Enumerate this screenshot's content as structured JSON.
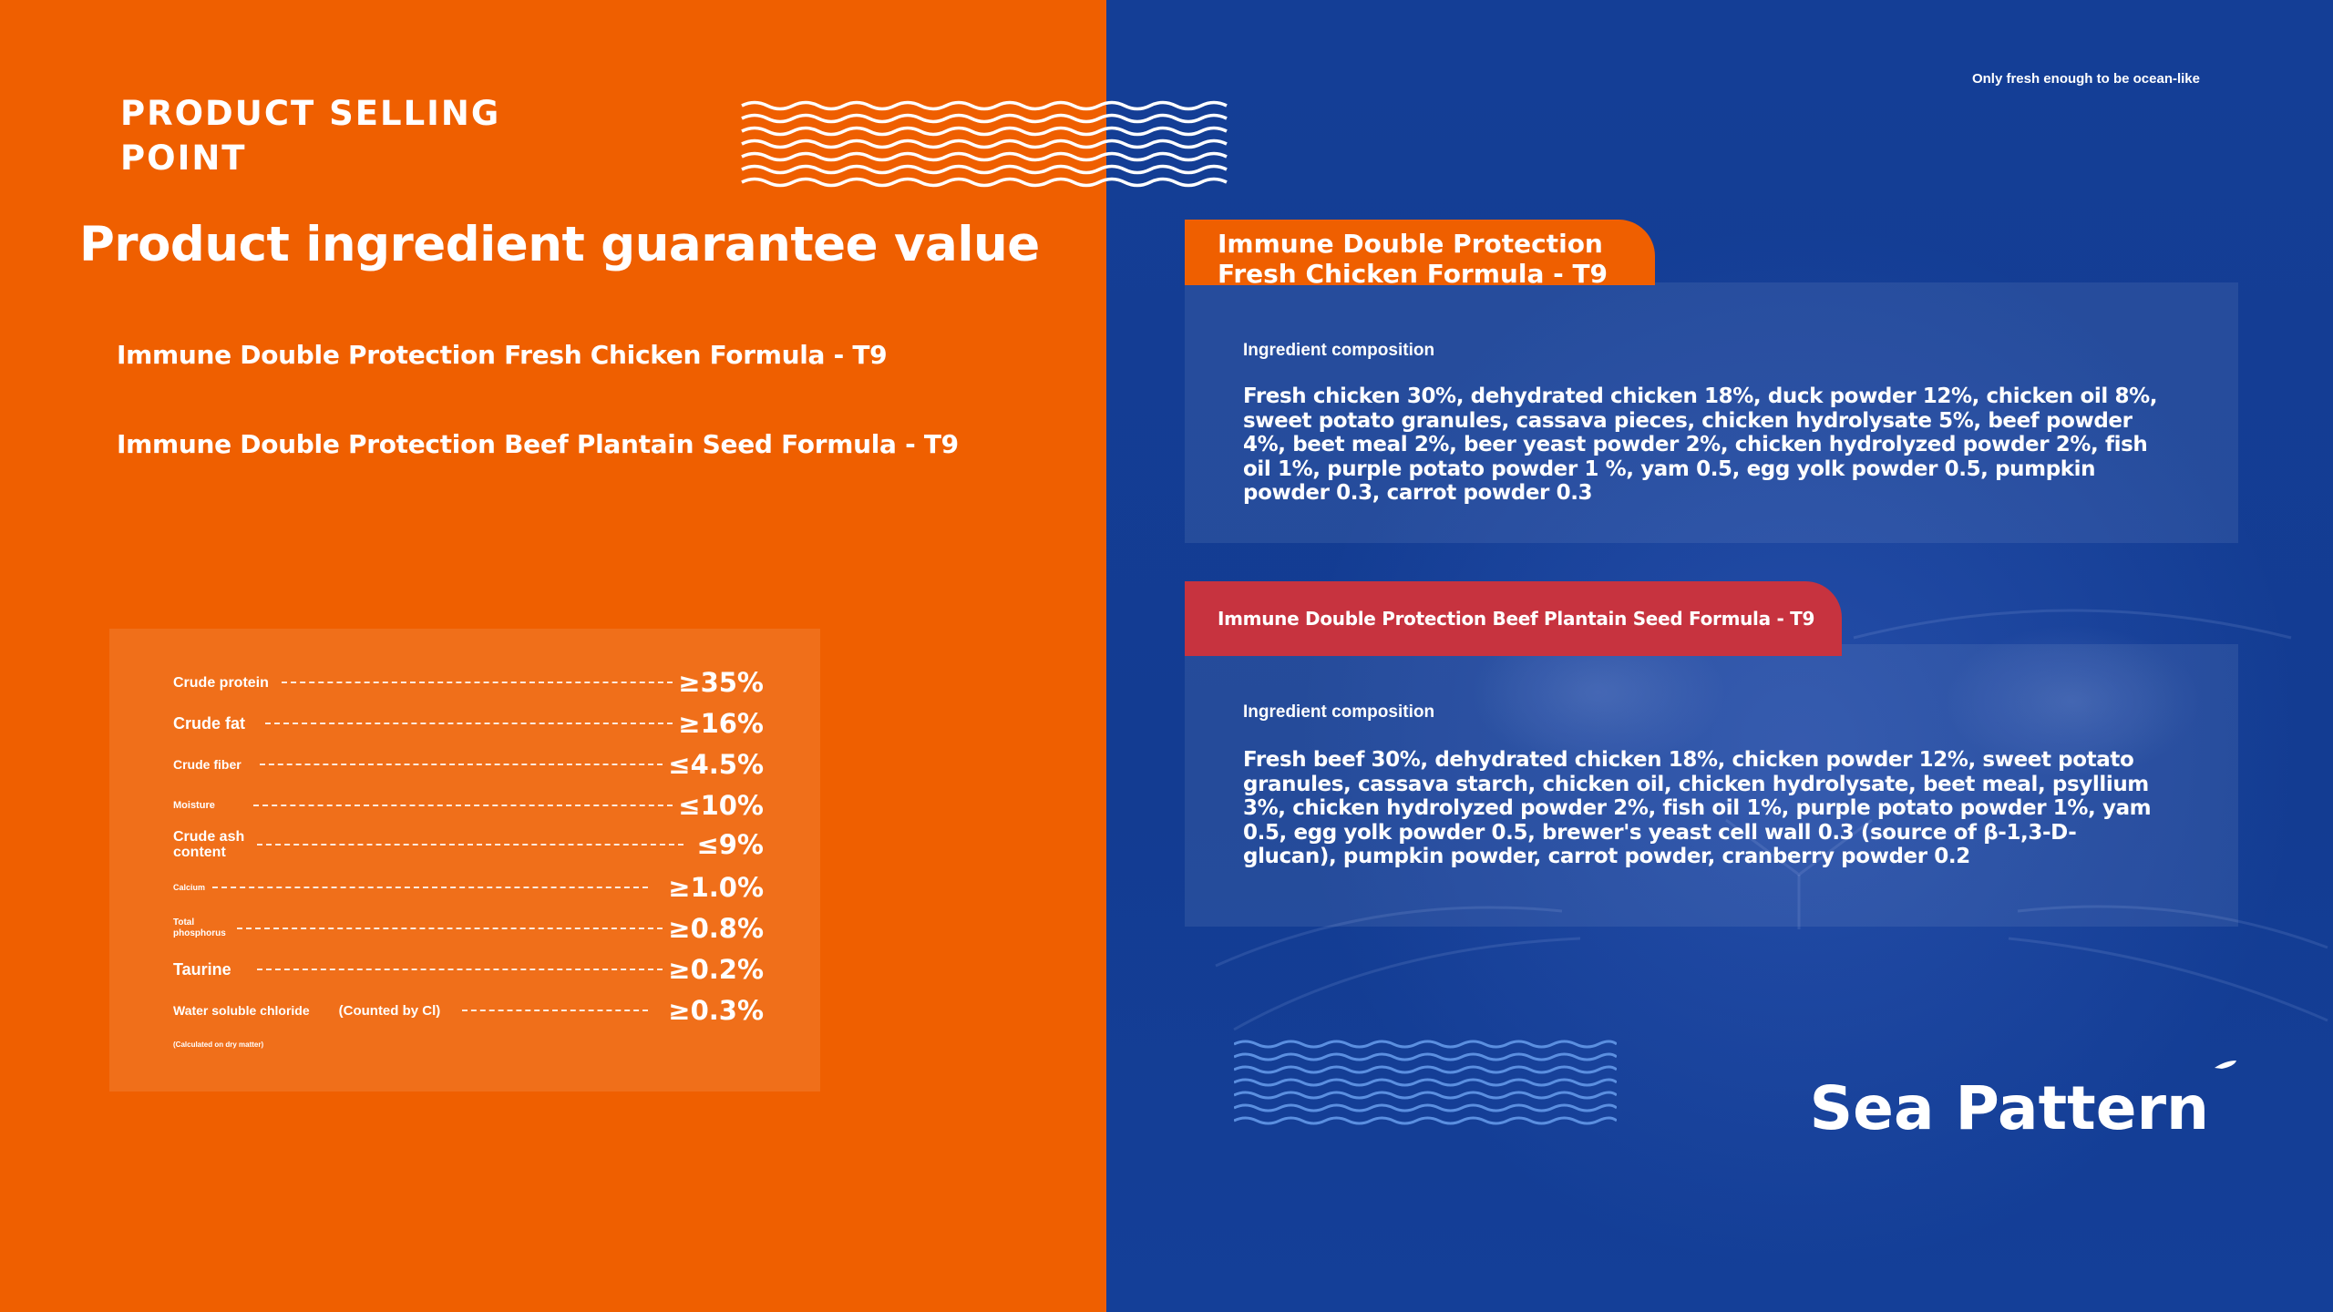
{
  "left": {
    "section_title": [
      "PRODUCT SELLING",
      "POINT"
    ],
    "main_title": "Product ingredient guarantee value",
    "formulas": [
      "Immune Double Protection Fresh Chicken Formula - T9",
      "Immune Double Protection Beef Plantain Seed Formula - T9"
    ],
    "guarantee": [
      {
        "label": "Crude protein",
        "value": "≥35%"
      },
      {
        "label": "Crude fat",
        "value": "≥16%"
      },
      {
        "label": "Crude fiber",
        "value": "≤4.5%"
      },
      {
        "label": "Moisture",
        "value": "≤10%"
      },
      {
        "label": "Crude ash content",
        "value": "≤9%"
      },
      {
        "label": "Calcium",
        "value": "≥1.0%"
      },
      {
        "label": "Total phosphorus",
        "value": "≥0.8%"
      },
      {
        "label": "Taurine",
        "value": "≥0.2%"
      },
      {
        "label": "Water soluble chloride",
        "extra": "(Counted by Cl)",
        "value": "≥0.3%"
      }
    ],
    "note": "(Calculated on dry matter)"
  },
  "right": {
    "slogan": "Only fresh enough to be ocean-like",
    "cards": [
      {
        "tab": "Immune Double Protection Fresh Chicken Formula - T9",
        "label": "Ingredient composition",
        "text": "Fresh chicken 30%, dehydrated chicken 18%, duck powder 12%, chicken oil 8%, sweet potato granules, cassava pieces, chicken hydrolysate 5%, beef powder 4%, beet meal 2%, beer yeast powder 2%, chicken hydrolyzed powder 2%, fish oil 1%, purple potato powder 1 %, yam 0.5, egg yolk powder 0.5, pumpkin powder 0.3, carrot powder 0.3"
      },
      {
        "tab": "Immune Double Protection Beef Plantain Seed Formula - T9",
        "label": "Ingredient composition",
        "text": "Fresh beef 30%, dehydrated chicken 18%, chicken powder 12%, sweet potato granules, cassava starch, chicken oil, chicken hydrolysate, beet meal, psyllium 3%, chicken hydrolyzed powder 2%, fish oil 1%, purple potato powder 1%, yam 0.5, egg yolk powder 0.5, brewer's yeast cell wall 0.3 (source of β-1,3-D-glucan), pumpkin powder, carrot powder, cranberry powder 0.2"
      }
    ],
    "brand": "Sea Pattern"
  },
  "colors": {
    "orange": "#ef5f00",
    "blue": "#143e96",
    "red_tab": "#c7333f",
    "wave_light": "#5b8fe0"
  }
}
